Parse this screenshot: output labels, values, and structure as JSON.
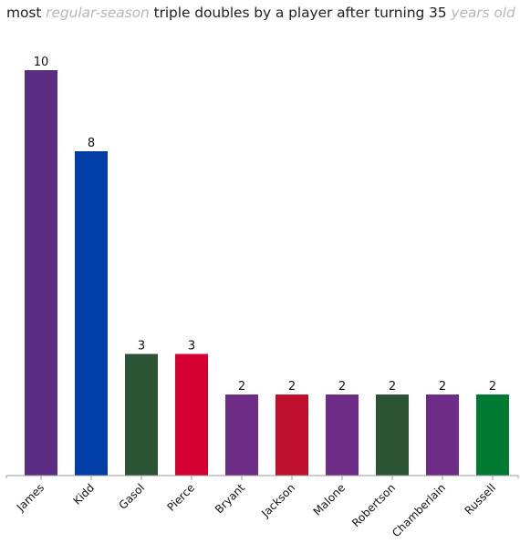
{
  "header": {
    "title_parts": [
      {
        "text": "most ",
        "style": "normal"
      },
      {
        "text": "regular-season",
        "style": "muted"
      },
      {
        "text": " triple doubles by a player after turning 35 ",
        "style": "normal"
      },
      {
        "text": "years old",
        "style": "muted"
      }
    ]
  },
  "chart_data": {
    "type": "bar",
    "categories": [
      "James",
      "Kidd",
      "Gasol",
      "Pierce",
      "Bryant",
      "Jackson",
      "Malone",
      "Robertson",
      "Chamberlain",
      "Russell"
    ],
    "values": [
      10,
      8,
      3,
      3,
      2,
      2,
      2,
      2,
      2,
      2
    ],
    "colors": [
      "#5a2d82",
      "#003da5",
      "#2b5434",
      "#d50032",
      "#6d2d87",
      "#bd0f2d",
      "#6d2d87",
      "#2b5434",
      "#6d2d87",
      "#007a33"
    ],
    "title": "most regular-season triple doubles by a player after turning 35 years old",
    "xlabel": "",
    "ylabel": "",
    "ylim": [
      0,
      10
    ],
    "grid": false,
    "data_labels": true
  }
}
